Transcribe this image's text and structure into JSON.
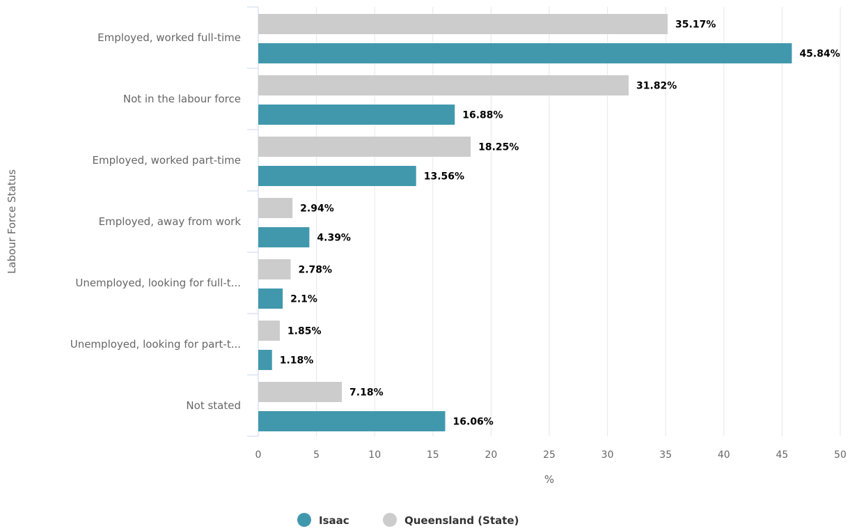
{
  "chart_data": {
    "type": "bar",
    "orientation": "horizontal",
    "categories": [
      "Employed, worked full-time",
      "Not in the labour force",
      "Employed, worked part-time",
      "Employed, away from work",
      "Unemployed, looking for full-t...",
      "Unemployed, looking for part-t...",
      "Not stated"
    ],
    "series": [
      {
        "name": "Queensland (State)",
        "color": "#cccccc",
        "values": [
          35.17,
          31.82,
          18.25,
          2.94,
          2.78,
          1.85,
          7.18
        ],
        "labels": [
          "35.17%",
          "31.82%",
          "18.25%",
          "2.94%",
          "2.78%",
          "1.85%",
          "7.18%"
        ]
      },
      {
        "name": "Isaac",
        "color": "#4198ad",
        "values": [
          45.84,
          16.88,
          13.56,
          4.39,
          2.1,
          1.18,
          16.06
        ],
        "labels": [
          "45.84%",
          "16.88%",
          "13.56%",
          "4.39%",
          "2.1%",
          "1.18%",
          "16.06%"
        ]
      }
    ],
    "xlabel": "%",
    "ylabel": "Labour Force Status",
    "xlim": [
      0,
      50
    ],
    "xticks": [
      "0",
      "5",
      "10",
      "15",
      "20",
      "25",
      "30",
      "35",
      "40",
      "45",
      "50"
    ],
    "grid": true,
    "legend": {
      "placement": "bottom-center",
      "items": [
        {
          "name": "Isaac",
          "color": "#4198ad"
        },
        {
          "name": "Queensland (State)",
          "color": "#cccccc"
        }
      ]
    }
  }
}
